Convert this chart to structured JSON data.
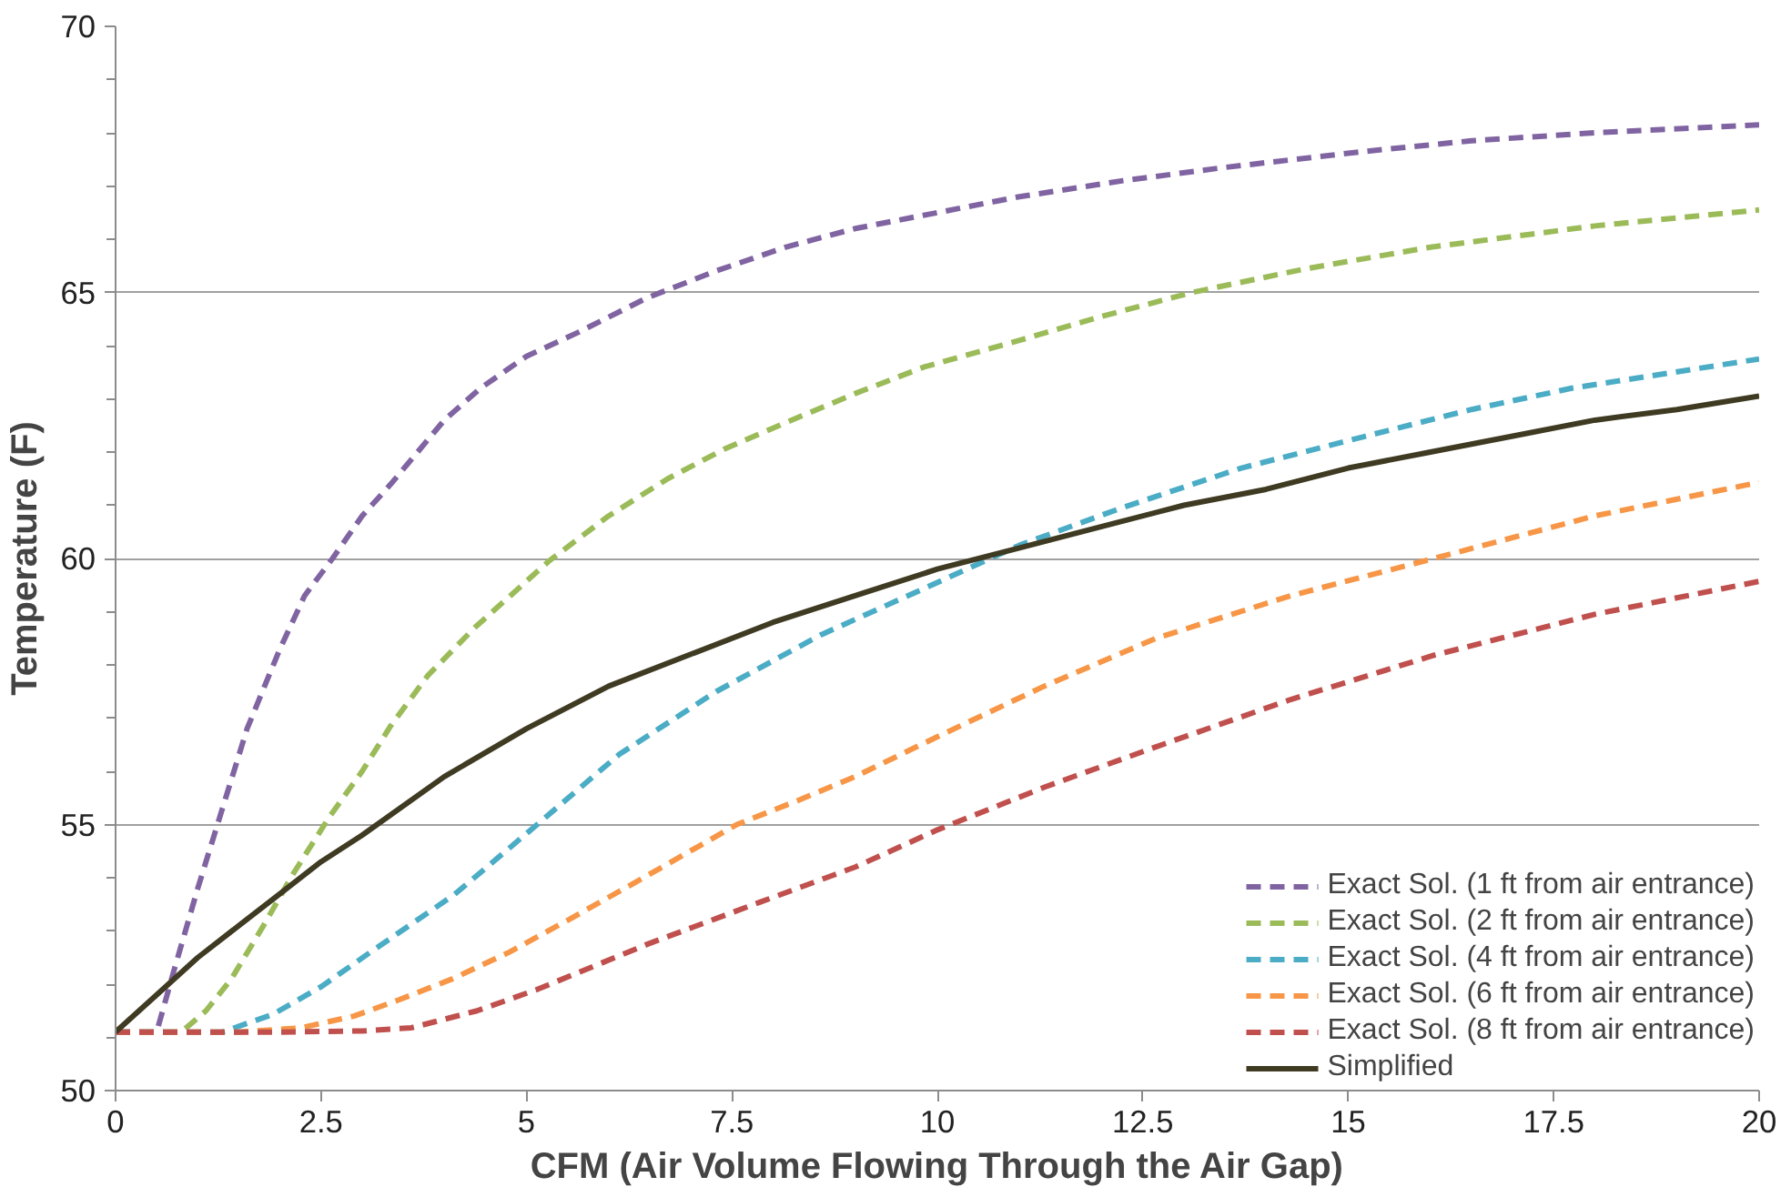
{
  "chart_data": {
    "type": "line",
    "xlabel": "CFM (Air Volume Flowing Through the Air Gap)",
    "ylabel": "Temperature (F)",
    "xlim": [
      0,
      20
    ],
    "ylim": [
      50,
      70
    ],
    "xticks": [
      0,
      2.5,
      5,
      7.5,
      10,
      12.5,
      15,
      17.5,
      20
    ],
    "yticks": [
      50,
      {
        "value": 51,
        "label": null
      },
      {
        "value": 52,
        "label": null
      },
      {
        "value": 53,
        "label": null
      },
      {
        "value": 54,
        "label": null
      },
      55,
      {
        "value": 56,
        "label": null
      },
      {
        "value": 57,
        "label": null
      },
      {
        "value": 58,
        "label": null
      },
      {
        "value": 59,
        "label": null
      },
      60,
      {
        "value": 61,
        "label": null
      },
      {
        "value": 62,
        "label": null
      },
      {
        "value": 63,
        "label": null
      },
      {
        "value": 64,
        "label": null
      },
      65,
      {
        "value": 66,
        "label": null
      },
      {
        "value": 67,
        "label": null
      },
      {
        "value": 68,
        "label": null
      },
      {
        "value": 69,
        "label": null
      },
      70
    ],
    "grid": "y",
    "legend": "bottom right",
    "marker": "none",
    "series": [
      {
        "name": "Exact Sol. (1 ft from air entrance)",
        "color": "#8064a2",
        "line_style": "dashed",
        "x": [
          0,
          0.5,
          0.7,
          1.0,
          1.3,
          1.6,
          2.0,
          2.3,
          2.64,
          3.0,
          3.35,
          4.0,
          4.44,
          5.0,
          5.63,
          6.47,
          7.3,
          8.15,
          9.0,
          10,
          11,
          12.26,
          13.5,
          15.2,
          16.5,
          18,
          20
        ],
        "values": [
          51.1,
          51.1,
          52.2,
          53.8,
          55.3,
          56.8,
          58.3,
          59.3,
          60.0,
          60.8,
          61.4,
          62.6,
          63.2,
          63.8,
          64.25,
          64.9,
          65.4,
          65.85,
          66.2,
          66.5,
          66.8,
          67.1,
          67.35,
          67.65,
          67.85,
          68.0,
          68.15
        ]
      },
      {
        "name": "Exact Sol. (2 ft from air entrance)",
        "color": "#9bbb59",
        "line_style": "dashed",
        "x": [
          0,
          0.8,
          1.1,
          1.41,
          1.8,
          2.16,
          2.6,
          3.0,
          3.35,
          3.8,
          4.37,
          5.28,
          6.0,
          6.72,
          7.4,
          8.15,
          9.0,
          9.84,
          11,
          12,
          13.1,
          14.5,
          16,
          18,
          20
        ],
        "values": [
          51.1,
          51.1,
          51.5,
          52.1,
          53.1,
          54.07,
          55.14,
          56.0,
          56.86,
          57.8,
          58.7,
          59.96,
          60.8,
          61.5,
          62.05,
          62.55,
          63.1,
          63.6,
          64.1,
          64.55,
          65.0,
          65.45,
          65.85,
          66.25,
          66.55
        ]
      },
      {
        "name": "Exact Sol. (4 ft from air entrance)",
        "color": "#4bacc6",
        "line_style": "dashed",
        "x": [
          0,
          1.3,
          1.91,
          2.5,
          3.1,
          4.12,
          5.13,
          6.13,
          7.31,
          8.59,
          9.93,
          11,
          12.26,
          13.7,
          15.19,
          16.5,
          17.72,
          20
        ],
        "values": [
          51.1,
          51.1,
          51.43,
          51.95,
          52.6,
          53.68,
          55.0,
          56.32,
          57.5,
          58.57,
          59.5,
          60.25,
          60.96,
          61.7,
          62.29,
          62.8,
          63.2,
          63.75
        ]
      },
      {
        "name": "Exact Sol. (6 ft from air entrance)",
        "color": "#f79646",
        "line_style": "dashed",
        "x": [
          0,
          1.5,
          2.26,
          2.9,
          3.44,
          4.1,
          4.79,
          5.5,
          6.31,
          7.56,
          8.3,
          9.0,
          10,
          11.3,
          12.66,
          14.3,
          16.04,
          18,
          20
        ],
        "values": [
          51.1,
          51.1,
          51.18,
          51.4,
          51.7,
          52.1,
          52.6,
          53.2,
          53.9,
          55.0,
          55.45,
          55.9,
          56.65,
          57.6,
          58.5,
          59.3,
          60.0,
          60.8,
          61.43
        ]
      },
      {
        "name": "Exact Sol. (8 ft from air entrance)",
        "color": "#c0504d",
        "line_style": "dashed",
        "x": [
          0,
          2,
          3,
          3.6,
          4.4,
          5.13,
          6.47,
          7.84,
          9.0,
          10,
          11.3,
          12.66,
          14.3,
          16.04,
          18,
          20
        ],
        "values": [
          51.1,
          51.1,
          51.12,
          51.18,
          51.5,
          51.9,
          52.75,
          53.54,
          54.2,
          54.9,
          55.7,
          56.46,
          57.35,
          58.18,
          58.95,
          59.57
        ]
      },
      {
        "name": "Simplified",
        "color": "#3f3a22",
        "line_style": "solid",
        "x": [
          0,
          0.5,
          1,
          1.5,
          2,
          2.5,
          3,
          4,
          5,
          6,
          7,
          8,
          9,
          10,
          11,
          12,
          13,
          14,
          15,
          16,
          17,
          18,
          19,
          20
        ],
        "values": [
          51.1,
          51.8,
          52.5,
          53.1,
          53.7,
          54.3,
          54.8,
          55.9,
          56.8,
          57.6,
          58.2,
          58.8,
          59.3,
          59.8,
          60.2,
          60.6,
          61.0,
          61.3,
          61.7,
          62.0,
          62.3,
          62.6,
          62.8,
          63.05
        ]
      }
    ]
  }
}
